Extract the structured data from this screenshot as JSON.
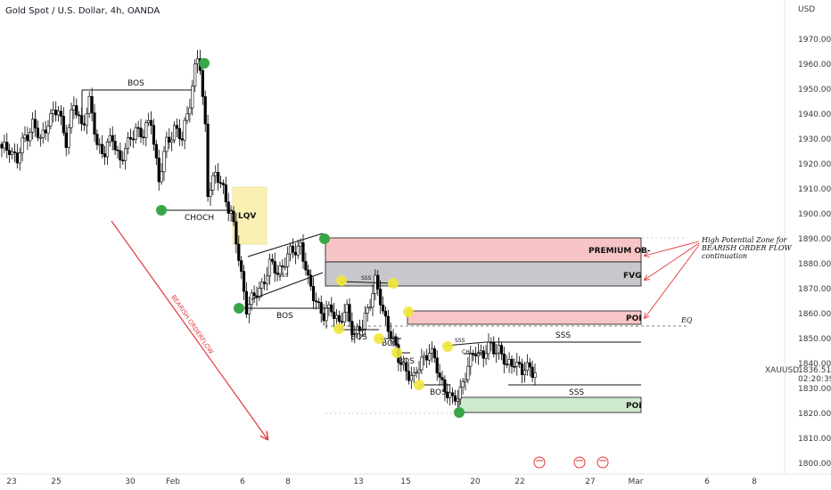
{
  "header": {
    "title": "Gold Spot / U.S. Dollar, 4h, OANDA",
    "currency": "USD"
  },
  "price_label": {
    "symbol": "XAUUSD",
    "price": "1836.515",
    "countdown": "02:20:39"
  },
  "colors": {
    "up_candle": "#ffffff",
    "down_candle": "#000000",
    "premium_zone": "#f7c5c5",
    "fvg_zone": "#c8c8cc",
    "poi_bear": "#f7c5c5",
    "poi_bull": "#cfe9cc",
    "lqv_zone": "#fbf0b4",
    "pivot_green": "#3aa64a",
    "pivot_yellow": "#f0e53a",
    "orderflow_arrow": "#e5343a"
  },
  "annotations": {
    "bos": "BOS",
    "choch": "CHOCH",
    "lqv": "LQV",
    "premium_ob": "PREMIUM OB-",
    "fvg": "FVG",
    "poi": "POI",
    "eq": "EQ",
    "sss": "SSS",
    "ch": "CH",
    "bearish_orderflow": "BEARISH ORDERFLOW",
    "note_line1": "High Potential Zone for",
    "note_line2": "BEARISH ORDER FLOW",
    "note_line3": "continuation"
  },
  "chart_data": {
    "type": "candlestick",
    "title": "Gold Spot / U.S. Dollar, 4h, OANDA",
    "y_axis": {
      "unit": "USD",
      "range": [
        1795,
        1975
      ],
      "ticks": [
        "1970.000",
        "1960.000",
        "1950.000",
        "1940.000",
        "1930.000",
        "1920.000",
        "1910.000",
        "1900.000",
        "1890.000",
        "1880.000",
        "1870.000",
        "1860.000",
        "1850.000",
        "1840.000",
        "1830.000",
        "1820.000",
        "1810.000",
        "1800.000"
      ]
    },
    "x_axis": {
      "ticks": [
        "23",
        "25",
        "30",
        "Feb",
        "6",
        "8",
        "13",
        "15",
        "20",
        "22",
        "27",
        "Mar",
        "6",
        "8"
      ]
    },
    "key_levels": [
      {
        "label": "PREMIUM OB-",
        "from": 1880.5,
        "to": 1890
      },
      {
        "label": "FVG",
        "from": 1870,
        "to": 1880
      },
      {
        "label": "POI",
        "from": 1856.5,
        "to": 1861.5
      },
      {
        "label": "EQ",
        "value": 1854.5
      },
      {
        "label": "POI",
        "from": 1819.5,
        "to": 1825.5
      },
      {
        "label": "LQV",
        "from": 1895.5,
        "to": 1910
      }
    ],
    "anchors": [
      [
        0,
        1925
      ],
      [
        3,
        1927
      ],
      [
        6,
        1921
      ],
      [
        9,
        1931
      ],
      [
        12,
        1936
      ],
      [
        15,
        1929
      ],
      [
        18,
        1938
      ],
      [
        22,
        1941
      ],
      [
        25,
        1930
      ],
      [
        28,
        1943
      ],
      [
        31,
        1936
      ],
      [
        34,
        1944
      ],
      [
        37,
        1928
      ],
      [
        40,
        1925
      ],
      [
        43,
        1930
      ],
      [
        46,
        1922
      ],
      [
        49,
        1927
      ],
      [
        52,
        1935
      ],
      [
        55,
        1931
      ],
      [
        58,
        1938
      ],
      [
        61,
        1913
      ],
      [
        64,
        1928
      ],
      [
        67,
        1935
      ],
      [
        70,
        1929
      ],
      [
        73,
        1946
      ],
      [
        75,
        1958
      ],
      [
        76,
        1962
      ],
      [
        77,
        1958
      ],
      [
        78,
        1945
      ],
      [
        79,
        1935
      ],
      [
        80,
        1910
      ],
      [
        83,
        1915
      ],
      [
        86,
        1910
      ],
      [
        89,
        1900
      ],
      [
        92,
        1882
      ],
      [
        95,
        1863
      ],
      [
        98,
        1866
      ],
      [
        101,
        1872
      ],
      [
        104,
        1879
      ],
      [
        107,
        1877
      ],
      [
        110,
        1881
      ],
      [
        113,
        1885
      ],
      [
        116,
        1888
      ],
      [
        119,
        1872
      ],
      [
        122,
        1866
      ],
      [
        125,
        1858
      ],
      [
        128,
        1863
      ],
      [
        131,
        1856
      ],
      [
        134,
        1861
      ],
      [
        137,
        1852
      ],
      [
        140,
        1854
      ],
      [
        143,
        1866
      ],
      [
        145,
        1873
      ],
      [
        148,
        1860
      ],
      [
        151,
        1853
      ],
      [
        154,
        1841
      ],
      [
        157,
        1838
      ],
      [
        160,
        1833
      ],
      [
        163,
        1842
      ],
      [
        166,
        1845
      ],
      [
        169,
        1838
      ],
      [
        172,
        1830
      ],
      [
        175,
        1824
      ],
      [
        178,
        1830
      ],
      [
        181,
        1838
      ],
      [
        184,
        1846
      ],
      [
        187,
        1843
      ],
      [
        190,
        1847
      ],
      [
        193,
        1846
      ],
      [
        196,
        1838
      ],
      [
        199,
        1842
      ],
      [
        202,
        1836
      ],
      [
        205,
        1839
      ],
      [
        207,
        1837
      ]
    ]
  }
}
